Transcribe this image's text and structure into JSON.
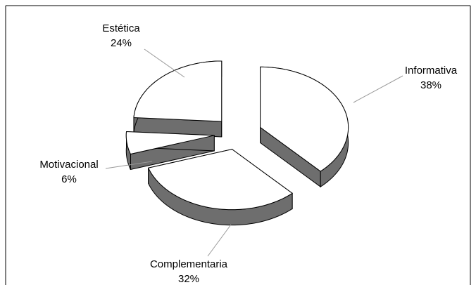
{
  "chart_data": {
    "type": "pie3d",
    "categories": [
      "Informativa",
      "Complementaria",
      "Motivacional",
      "Estética"
    ],
    "values": [
      38,
      32,
      6,
      24
    ],
    "value_labels": [
      "38%",
      "32%",
      "6%",
      "24%"
    ],
    "colors": [
      "#ffffff",
      "#ffffff",
      "#ffffff",
      "#ffffff"
    ],
    "side_color": "#6e6e6e"
  }
}
